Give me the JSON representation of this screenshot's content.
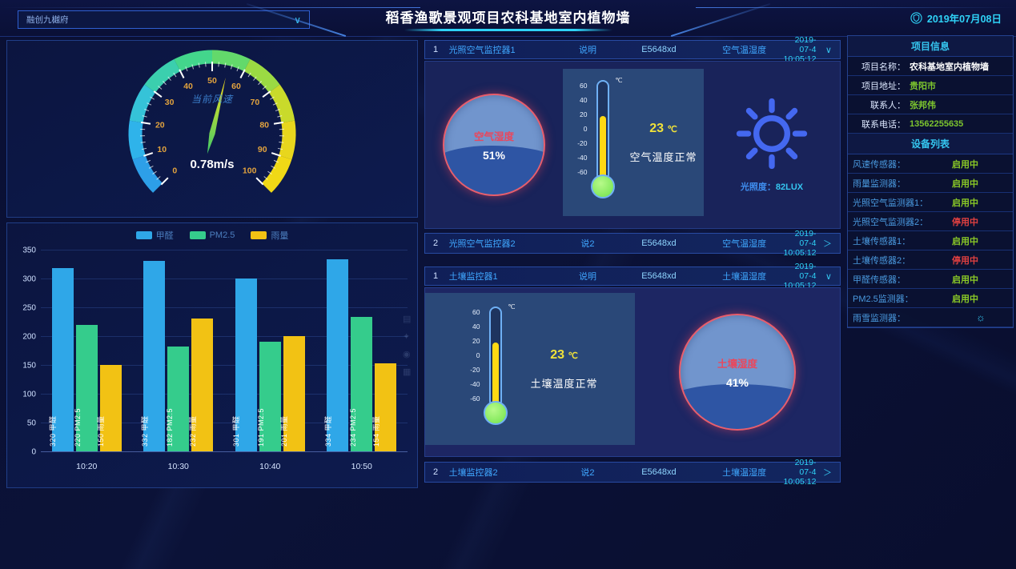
{
  "header": {
    "project_selector": "融创九樾府",
    "title": "稻香渔歌景观项目农科基地室内植物墙",
    "date": "2019年07月08日"
  },
  "wind_gauge": {
    "label": "当前风速",
    "value": "0.78m/s",
    "min": 0,
    "max": 100,
    "ticks": [
      0,
      10,
      20,
      30,
      40,
      50,
      60,
      70,
      80,
      90,
      100
    ]
  },
  "chart_data": {
    "type": "bar",
    "categories": [
      "10:20",
      "10:30",
      "10:40",
      "10:50"
    ],
    "series": [
      {
        "name": "甲醛",
        "color": "#2fa7e8",
        "values": [
          320,
          332,
          301,
          334
        ]
      },
      {
        "name": "PM2.5",
        "color": "#35cc8c",
        "values": [
          220,
          182,
          191,
          234
        ]
      },
      {
        "name": "雨量",
        "color": "#f2c214",
        "values": [
          150,
          232,
          201,
          154
        ]
      }
    ],
    "ylim": [
      0,
      350
    ],
    "ytick_step": 50,
    "legend_position": "top",
    "grid": true
  },
  "air_monitor": {
    "header": {
      "index": "1",
      "name": "光照空气监控器1",
      "note": "说明",
      "code": "E5648xd",
      "type": "空气温湿度",
      "time": "2019-07-4 10:05:12",
      "chevron": "∨"
    },
    "humidity": {
      "label": "空气湿度",
      "value": 51,
      "unit": "%"
    },
    "temperature": {
      "value": "23",
      "unit": "℃",
      "status": "空气温度正常",
      "scale": [
        60,
        40,
        20,
        0,
        -20,
        -40,
        -60
      ]
    },
    "light": {
      "label": "光照度：",
      "value": "82LUX"
    },
    "collapsed": {
      "index": "2",
      "name": "光照空气监控器2",
      "note": "说2",
      "code": "E5648xd",
      "type": "空气温湿度",
      "time": "2019-07-4 10:05:12",
      "chevron": "＞"
    }
  },
  "soil_monitor": {
    "header": {
      "index": "1",
      "name": "土壤监控器1",
      "note": "说明",
      "code": "E5648xd",
      "type": "土壤温湿度",
      "time": "2019-07-4 10:05:12",
      "chevron": "∨"
    },
    "temperature": {
      "value": "23",
      "unit": "℃",
      "status": "土壤温度正常",
      "scale": [
        60,
        40,
        20,
        0,
        -20,
        -40,
        -60
      ]
    },
    "humidity": {
      "label": "土壤湿度",
      "value": 41,
      "unit": "%"
    },
    "collapsed": {
      "index": "2",
      "name": "土壤监控器2",
      "note": "说2",
      "code": "E5648xd",
      "type": "土壤温湿度",
      "time": "2019-07-4 10:05:12",
      "chevron": "＞"
    }
  },
  "project_info": {
    "title": "项目信息",
    "rows": [
      {
        "label": "项目名称：",
        "value": "农科基地室内植物墙",
        "color": "white"
      },
      {
        "label": "项目地址：",
        "value": "贵阳市",
        "color": "green"
      },
      {
        "label": "联系人：",
        "value": "张邦伟",
        "color": "green"
      },
      {
        "label": "联系电话：",
        "value": "13562255635",
        "color": "green"
      }
    ]
  },
  "device_list": {
    "title": "设备列表",
    "rows": [
      {
        "label": "风速传感器：",
        "status": "启用中",
        "state": "on"
      },
      {
        "label": "雨量监测器：",
        "status": "启用中",
        "state": "on"
      },
      {
        "label": "光照空气监测器1：",
        "status": "启用中",
        "state": "on"
      },
      {
        "label": "光照空气监测器2：",
        "status": "停用中",
        "state": "off"
      },
      {
        "label": "土壤传感器1：",
        "status": "启用中",
        "state": "on"
      },
      {
        "label": "土壤传感器2：",
        "status": "停用中",
        "state": "off"
      },
      {
        "label": "甲醛传感器：",
        "status": "启用中",
        "state": "on"
      },
      {
        "label": "PM2.5监测器：",
        "status": "启用中",
        "state": "on"
      },
      {
        "label": "雨雪监测器：",
        "status": "",
        "state": "icon",
        "icon_glyph": "☼"
      }
    ]
  },
  "decor": {
    "side_icons": [
      "▤",
      "✦",
      "◉",
      "▦"
    ]
  },
  "colors": {
    "accent_cyan": "#2fd3f7",
    "status_on": "#8ac926",
    "status_off": "#e04040",
    "gauge_number": "#e2a33e"
  }
}
